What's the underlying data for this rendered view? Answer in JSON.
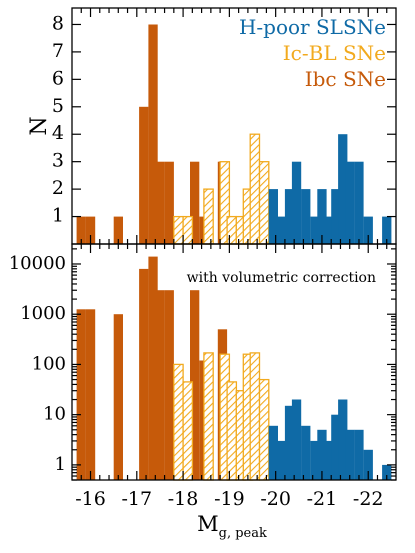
{
  "chart_data": [
    {
      "type": "bar",
      "ylabel": "N",
      "yscale": "linear",
      "ylim": [
        0,
        8.6
      ],
      "yticks": [
        "1",
        "2",
        "3",
        "4",
        "5",
        "6",
        "7",
        "8"
      ],
      "legend": {
        "placement": "top-right",
        "entries": [
          {
            "label": "H-poor SLSNe",
            "color": "#0f6aa6"
          },
          {
            "label": "Ic-BL SNe",
            "color": "#f2aa1e"
          },
          {
            "label": "Ibc SNe",
            "color": "#c65a0a"
          }
        ]
      },
      "series": [
        {
          "name": "Ibc SNe",
          "style": "solid",
          "color": "#c65a0a",
          "bins": [
            [
              -15.8,
              1
            ],
            [
              -16.0,
              1
            ],
            [
              -16.6,
              1
            ],
            [
              -17.15,
              5
            ],
            [
              -17.35,
              8
            ],
            [
              -17.5,
              3
            ],
            [
              -17.7,
              3
            ],
            [
              -18.25,
              3
            ],
            [
              -18.45,
              1
            ],
            [
              -18.85,
              3
            ],
            [
              -19.05,
              1
            ],
            [
              -19.15,
              1
            ],
            [
              -19.35,
              1
            ],
            [
              -19.45,
              1
            ]
          ]
        },
        {
          "name": "Ic-BL SNe",
          "style": "hatched",
          "color": "#f2aa1e",
          "bins": [
            [
              -17.9,
              1
            ],
            [
              -18.1,
              1
            ],
            [
              -18.55,
              2
            ],
            [
              -18.9,
              3
            ],
            [
              -19.05,
              1
            ],
            [
              -19.25,
              1
            ],
            [
              -19.4,
              2
            ],
            [
              -19.55,
              4
            ],
            [
              -19.75,
              3
            ]
          ]
        },
        {
          "name": "H-poor SLSNe",
          "style": "solid",
          "color": "#0f6aa6",
          "bins": [
            [
              -19.95,
              2
            ],
            [
              -20.15,
              1
            ],
            [
              -20.3,
              2
            ],
            [
              -20.45,
              3
            ],
            [
              -20.65,
              2
            ],
            [
              -20.85,
              1
            ],
            [
              -21.0,
              2
            ],
            [
              -21.15,
              1
            ],
            [
              -21.3,
              2
            ],
            [
              -21.45,
              4
            ],
            [
              -21.6,
              3
            ],
            [
              -21.8,
              3
            ],
            [
              -22.0,
              1
            ],
            [
              -22.4,
              1
            ]
          ]
        }
      ]
    },
    {
      "type": "bar",
      "ylabel": "",
      "yscale": "log",
      "annotation": "with volumetric correction",
      "ylim": [
        0.5,
        25000
      ],
      "yticks": [
        "1",
        "10",
        "100",
        "1000",
        "10000"
      ],
      "xlabel_main": "M",
      "xlabel_sub": "g, peak",
      "xlim": [
        -15.6,
        -22.6
      ],
      "xticks": [
        -16,
        -17,
        -18,
        -19,
        -20,
        -21,
        -22
      ],
      "xticklabels": [
        "-16",
        "-17",
        "-18",
        "-19",
        "-20",
        "-21",
        "-22"
      ],
      "series": [
        {
          "name": "Ibc SNe",
          "style": "solid",
          "color": "#c65a0a",
          "bins": [
            [
              -15.8,
              1250
            ],
            [
              -16.0,
              1250
            ],
            [
              -16.6,
              1000
            ],
            [
              -17.15,
              8000
            ],
            [
              -17.35,
              14000
            ],
            [
              -17.5,
              3000
            ],
            [
              -17.7,
              3000
            ],
            [
              -18.25,
              3000
            ],
            [
              -18.45,
              120
            ],
            [
              -18.85,
              500
            ],
            [
              -19.05,
              45
            ],
            [
              -19.15,
              30
            ],
            [
              -19.35,
              30
            ],
            [
              -19.45,
              20
            ]
          ]
        },
        {
          "name": "Ic-BL SNe",
          "style": "hatched",
          "color": "#f2aa1e",
          "bins": [
            [
              -17.9,
              100
            ],
            [
              -18.1,
              45
            ],
            [
              -18.55,
              170
            ],
            [
              -18.9,
              160
            ],
            [
              -19.05,
              45
            ],
            [
              -19.25,
              30
            ],
            [
              -19.4,
              160
            ],
            [
              -19.55,
              170
            ],
            [
              -19.75,
              50
            ]
          ]
        },
        {
          "name": "H-poor SLSNe",
          "style": "solid",
          "color": "#0f6aa6",
          "bins": [
            [
              -19.95,
              6
            ],
            [
              -20.15,
              3
            ],
            [
              -20.3,
              15
            ],
            [
              -20.45,
              20
            ],
            [
              -20.65,
              6
            ],
            [
              -20.85,
              3
            ],
            [
              -21.0,
              5
            ],
            [
              -21.15,
              3
            ],
            [
              -21.3,
              10
            ],
            [
              -21.45,
              20
            ],
            [
              -21.6,
              5
            ],
            [
              -21.8,
              5
            ],
            [
              -22.0,
              2
            ],
            [
              -22.4,
              1
            ]
          ]
        }
      ]
    }
  ]
}
